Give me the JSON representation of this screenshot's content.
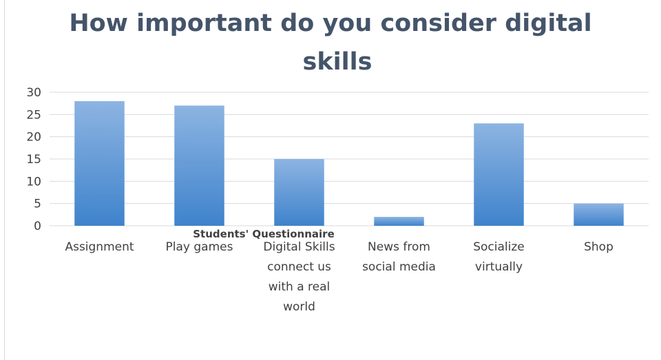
{
  "chart_data": {
    "type": "bar",
    "title": "How important do you consider digital skills",
    "title_lines": [
      "How important do you consider digital",
      "skills"
    ],
    "xlabel": "Students' Questionnaire",
    "ylabel": "",
    "ylim": [
      0,
      30
    ],
    "yticks": [
      "0",
      "5",
      "10",
      "15",
      "20",
      "25",
      "30"
    ],
    "categories": [
      [
        "Assignment"
      ],
      [
        "Play games"
      ],
      [
        "Digital Skills",
        "connect us",
        "with a real",
        "world"
      ],
      [
        "News from",
        "social media"
      ],
      [
        "Socialize",
        "virtually"
      ],
      [
        "Shop"
      ]
    ],
    "values": [
      28,
      27,
      15,
      2,
      23,
      5
    ],
    "grid": true,
    "legend": "none",
    "colors": {
      "bar_top": "#8db4e2",
      "bar_bottom": "#3f83cc",
      "grid": "#d9d9d9",
      "text": "#404040",
      "title": "#44546a"
    }
  }
}
